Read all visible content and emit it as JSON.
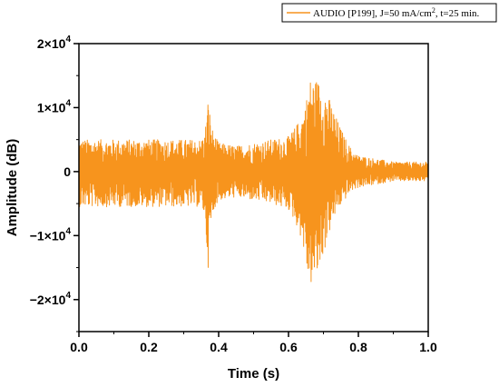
{
  "chart_data": {
    "type": "line",
    "xlabel": "Time (s)",
    "ylabel": "Amplitude (dB)",
    "xlim": [
      0,
      1.0
    ],
    "ylim": [
      -25000,
      20000
    ],
    "x_ticks": [
      0.0,
      0.2,
      0.4,
      0.6,
      0.8,
      1.0
    ],
    "x_tick_labels": [
      "0.0",
      "0.2",
      "0.4",
      "0.6",
      "0.8",
      "1.0"
    ],
    "y_ticks": [
      -20000,
      -10000,
      0,
      10000,
      20000
    ],
    "y_tick_labels": [
      {
        "mantissa": "−2×10",
        "exp": "4"
      },
      {
        "mantissa": "−1×10",
        "exp": "4"
      },
      {
        "mantissa": "0",
        "exp": ""
      },
      {
        "mantissa": "1×10",
        "exp": "4"
      },
      {
        "mantissa": "2×10",
        "exp": "4"
      }
    ],
    "grid": false,
    "legend_position": "top-right",
    "legend": {
      "part1": "AUDIO [P199], J=50 mA/cm",
      "sup": "2",
      "part2": ", t=25 min."
    },
    "series": [
      {
        "name": "AUDIO [P199], J=50 mA/cm2, t=25 min.",
        "color": "#f7941d",
        "envelope": {
          "x": [
            0.0,
            0.05,
            0.1,
            0.15,
            0.2,
            0.25,
            0.3,
            0.35,
            0.36,
            0.37,
            0.38,
            0.39,
            0.4,
            0.45,
            0.5,
            0.55,
            0.6,
            0.62,
            0.64,
            0.65,
            0.66,
            0.68,
            0.7,
            0.72,
            0.74,
            0.76,
            0.78,
            0.8,
            0.85,
            0.9,
            0.95,
            1.0
          ],
          "y_max": [
            5000,
            5000,
            5000,
            5000,
            5000,
            5000,
            5000,
            5000,
            6000,
            11500,
            7000,
            5500,
            4500,
            4000,
            4500,
            5000,
            5500,
            7000,
            9000,
            11000,
            14500,
            14500,
            13500,
            11000,
            8000,
            5500,
            3500,
            2500,
            2000,
            1500,
            1500,
            1500
          ],
          "y_min": [
            -5500,
            -5500,
            -5500,
            -5500,
            -5500,
            -5500,
            -5500,
            -5500,
            -7000,
            -15000,
            -8000,
            -5500,
            -4500,
            -4000,
            -4500,
            -5000,
            -6000,
            -8000,
            -11000,
            -15000,
            -18000,
            -17000,
            -13000,
            -9000,
            -6000,
            -4500,
            -3000,
            -2500,
            -2000,
            -1500,
            -1500,
            -1500
          ]
        },
        "samples": 1500
      }
    ]
  }
}
